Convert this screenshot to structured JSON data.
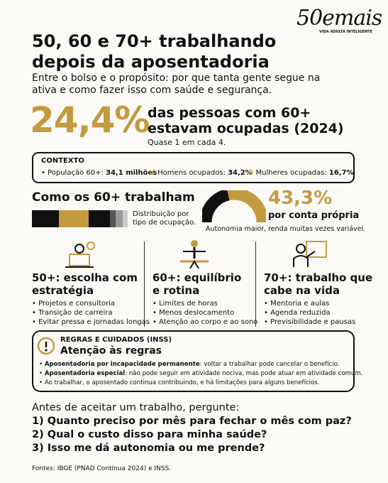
{
  "header": {
    "logo": "50emais",
    "logo_tagline": "VIDA ADULTA INTELIGENTE",
    "title_lines": [
      "50, 60 e 70+ trabalhando",
      "depois da aposentadoria"
    ],
    "subtitle_lines": [
      "Entre o bolso e o propósito: por que tanta gente segue na",
      "ativa e como fazer isso com saúde e segurança."
    ]
  },
  "headline": {
    "stat": "24,4%",
    "text_lines": [
      "das pessoas com 60+",
      "estavam ocupadas (2024)"
    ],
    "note": "Quase 1 em cada 4."
  },
  "context": {
    "label": "CONTEXTO",
    "items": [
      {
        "label": "População 60+:",
        "value": "34,1 milhões"
      },
      {
        "label": "Homens ocupados:",
        "value": "34,2%"
      },
      {
        "label": "Mulheres ocupadas:",
        "value": "16,7%"
      }
    ]
  },
  "work": {
    "title": "Como os 60+ trabalham",
    "bar_caption_lines": [
      "Distribuição por",
      "tipo de ocupação."
    ],
    "gauge": {
      "value": 43.3,
      "label": "43,3%"
    },
    "gauge_caption": "por conta própria",
    "note": "Autonomia maior, renda muitas vezes variável."
  },
  "columns": [
    {
      "title_lines": [
        "50+: escolha com",
        "estratégia"
      ],
      "bullets": [
        "Projetos e consultoria",
        "Transição de carreira",
        "Evitar pressa e jornadas longas"
      ]
    },
    {
      "title_lines": [
        "60+: equilíbrio",
        "e rotina"
      ],
      "bullets": [
        "Limites de horas",
        "Menos deslocamento",
        "Atenção ao corpo e ao sono"
      ]
    },
    {
      "title_lines": [
        "70+: trabalho que",
        "cabe na vida"
      ],
      "bullets": [
        "Mentoria e aulas",
        "Agenda reduzida",
        "Previsibilidade e pausas"
      ]
    }
  ],
  "rules": {
    "label": "REGRAS E CUIDADOS (INSS)",
    "title": "Atenção às regras",
    "items": [
      {
        "bold": "Aposentadoria por incapacidade permanente",
        "text": ": voltar a trabalhar pode cancelar o benefício."
      },
      {
        "bold": "Aposentadoria especial",
        "text": ": não pode seguir em atividade nociva, mas pode atuar em atividade comum."
      },
      {
        "bold": "",
        "text": "Ao trabalhar, o aposentado continua contribuindo, e há limitações para alguns benefícios."
      }
    ]
  },
  "questions": {
    "intro": "Antes de aceitar um trabalho, pergunte:",
    "items": [
      "1) Quanto preciso por mês para fechar o mês com paz?",
      "2) Qual o custo disso para minha saúde?",
      "3) Isso me dá autonomia ou me prende?"
    ]
  },
  "footer": {
    "sources": "Fontes: IBGE (PNAD Contínua 2024) e INSS."
  }
}
